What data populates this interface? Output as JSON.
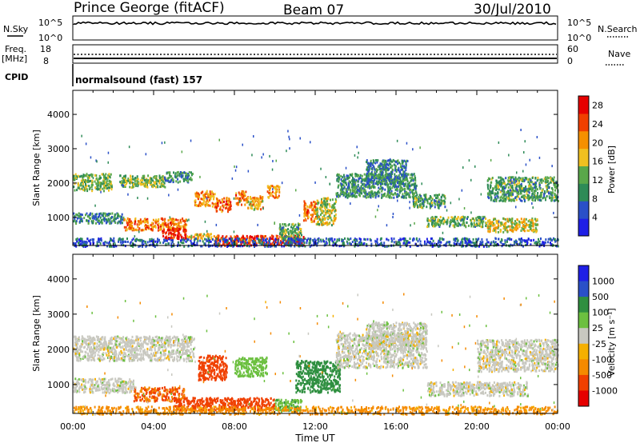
{
  "header": {
    "station": "Prince George (fitACF)",
    "beam": "Beam 07",
    "date": "30/Jul/2010"
  },
  "panel_labels": {
    "nsky": "N.Sky",
    "nsearch": "N.Search",
    "freq_line1": "Freq.",
    "freq_line2": "[MHz]",
    "nave": "Nave",
    "cpid": "CPID",
    "cpid_text": "normalsound (fast) 157",
    "nsky_ticks": [
      "10^5",
      "10^0"
    ],
    "nsearch_ticks": [
      "10^5",
      "10^0"
    ],
    "freq_ticks": [
      "18",
      "8"
    ],
    "nave_ticks": [
      "60",
      "0"
    ]
  },
  "colors": {
    "power_scale": [
      "#1f1fe6",
      "#2a50c8",
      "#2e8b57",
      "#5aa84a",
      "#f0c020",
      "#f59000",
      "#f04000",
      "#e60000"
    ],
    "velocity_scale": [
      "#e60000",
      "#f04000",
      "#f58a00",
      "#f5b000",
      "#c8c8c0",
      "#6cc040",
      "#2f8f40",
      "#2a50c8",
      "#1f1fe6"
    ]
  },
  "chart_data": [
    {
      "type": "heatmap",
      "name": "power",
      "title": "",
      "xlabel": "",
      "ylabel": "Slant Range [km]",
      "xticks": [
        "00:00",
        "04:00",
        "08:00",
        "12:00",
        "16:00",
        "20:00",
        "00:00"
      ],
      "xlim_hours": [
        0,
        24
      ],
      "yticks": [
        1000,
        2000,
        3000,
        4000
      ],
      "ylim": [
        180,
        4700
      ],
      "colorbar": {
        "label": "Power [dB]",
        "ticks": [
          4,
          8,
          12,
          16,
          20,
          24,
          28
        ],
        "range": [
          0,
          30
        ]
      },
      "echo_regions": [
        {
          "t": [
            0.0,
            1.9
          ],
          "r": [
            1800,
            2300
          ],
          "v": 13
        },
        {
          "t": [
            2.3,
            4.6
          ],
          "r": [
            1900,
            2250
          ],
          "v": 14
        },
        {
          "t": [
            4.5,
            5.9
          ],
          "r": [
            2050,
            2350
          ],
          "v": 10
        },
        {
          "t": [
            0.0,
            2.5
          ],
          "r": [
            850,
            1150
          ],
          "v": 9
        },
        {
          "t": [
            2.5,
            5.6
          ],
          "r": [
            650,
            1000
          ],
          "v": 22
        },
        {
          "t": [
            4.4,
            5.6
          ],
          "r": [
            400,
            700
          ],
          "v": 27
        },
        {
          "t": [
            5.6,
            7.0
          ],
          "r": [
            400,
            550
          ],
          "v": 18
        },
        {
          "t": [
            6.0,
            7.0
          ],
          "r": [
            1350,
            1800
          ],
          "v": 20
        },
        {
          "t": [
            7.0,
            7.8
          ],
          "r": [
            1200,
            1600
          ],
          "v": 23
        },
        {
          "t": [
            8.0,
            8.6
          ],
          "r": [
            1400,
            1800
          ],
          "v": 22
        },
        {
          "t": [
            8.6,
            9.4
          ],
          "r": [
            1250,
            1650
          ],
          "v": 19
        },
        {
          "t": [
            9.6,
            10.2
          ],
          "r": [
            1600,
            1950
          ],
          "v": 20
        },
        {
          "t": [
            7.0,
            11.4
          ],
          "r": [
            200,
            500
          ],
          "v": 26
        },
        {
          "t": [
            10.2,
            11.3
          ],
          "r": [
            350,
            850
          ],
          "v": 12
        },
        {
          "t": [
            11.4,
            12.0
          ],
          "r": [
            900,
            1500
          ],
          "v": 22
        },
        {
          "t": [
            12.0,
            13.0
          ],
          "r": [
            800,
            1600
          ],
          "v": 15
        },
        {
          "t": [
            13.0,
            17.0
          ],
          "r": [
            1600,
            2300
          ],
          "v": 10
        },
        {
          "t": [
            14.5,
            16.5
          ],
          "r": [
            2000,
            2700
          ],
          "v": 9
        },
        {
          "t": [
            16.8,
            18.4
          ],
          "r": [
            1300,
            1700
          ],
          "v": 11
        },
        {
          "t": [
            17.5,
            20.5
          ],
          "r": [
            750,
            1050
          ],
          "v": 12
        },
        {
          "t": [
            20.5,
            24.0
          ],
          "r": [
            1500,
            2200
          ],
          "v": 11
        },
        {
          "t": [
            20.5,
            23.0
          ],
          "r": [
            600,
            1000
          ],
          "v": 17
        },
        {
          "t": [
            0.0,
            24.0
          ],
          "r": [
            180,
            420
          ],
          "v": 6
        }
      ]
    },
    {
      "type": "heatmap",
      "name": "velocity",
      "title": "",
      "xlabel": "Time UT",
      "ylabel": "Slant Range [km]",
      "xticks": [
        "00:00",
        "04:00",
        "08:00",
        "12:00",
        "16:00",
        "20:00",
        "00:00"
      ],
      "xlim_hours": [
        0,
        24
      ],
      "yticks": [
        1000,
        2000,
        3000,
        4000
      ],
      "ylim": [
        180,
        4700
      ],
      "colorbar": {
        "label": "Velocity [m s^-1]",
        "ticks": [
          1000,
          500,
          100,
          25,
          -25,
          -100,
          -500,
          -1000
        ]
      },
      "echo_regions": [
        {
          "t": [
            0.0,
            6.0
          ],
          "r": [
            1700,
            2400
          ],
          "v": 0
        },
        {
          "t": [
            0.0,
            3.0
          ],
          "r": [
            800,
            1200
          ],
          "v": 0
        },
        {
          "t": [
            3.0,
            5.5
          ],
          "r": [
            550,
            950
          ],
          "v": -100
        },
        {
          "t": [
            5.0,
            10.0
          ],
          "r": [
            300,
            650
          ],
          "v": -200
        },
        {
          "t": [
            6.2,
            7.6
          ],
          "r": [
            1150,
            1850
          ],
          "v": -150
        },
        {
          "t": [
            8.0,
            9.6
          ],
          "r": [
            1250,
            1800
          ],
          "v": 60
        },
        {
          "t": [
            10.0,
            11.3
          ],
          "r": [
            250,
            600
          ],
          "v": 80
        },
        {
          "t": [
            11.0,
            13.2
          ],
          "r": [
            800,
            1700
          ],
          "v": 250
        },
        {
          "t": [
            13.0,
            17.5
          ],
          "r": [
            1500,
            2500
          ],
          "v": 0
        },
        {
          "t": [
            14.5,
            17.5
          ],
          "r": [
            2100,
            2800
          ],
          "v": 0
        },
        {
          "t": [
            17.5,
            22.5
          ],
          "r": [
            700,
            1100
          ],
          "v": 0
        },
        {
          "t": [
            20.0,
            24.0
          ],
          "r": [
            1400,
            2300
          ],
          "v": 0
        },
        {
          "t": [
            0.0,
            24.0
          ],
          "r": [
            180,
            400
          ],
          "v": -60
        }
      ]
    }
  ]
}
